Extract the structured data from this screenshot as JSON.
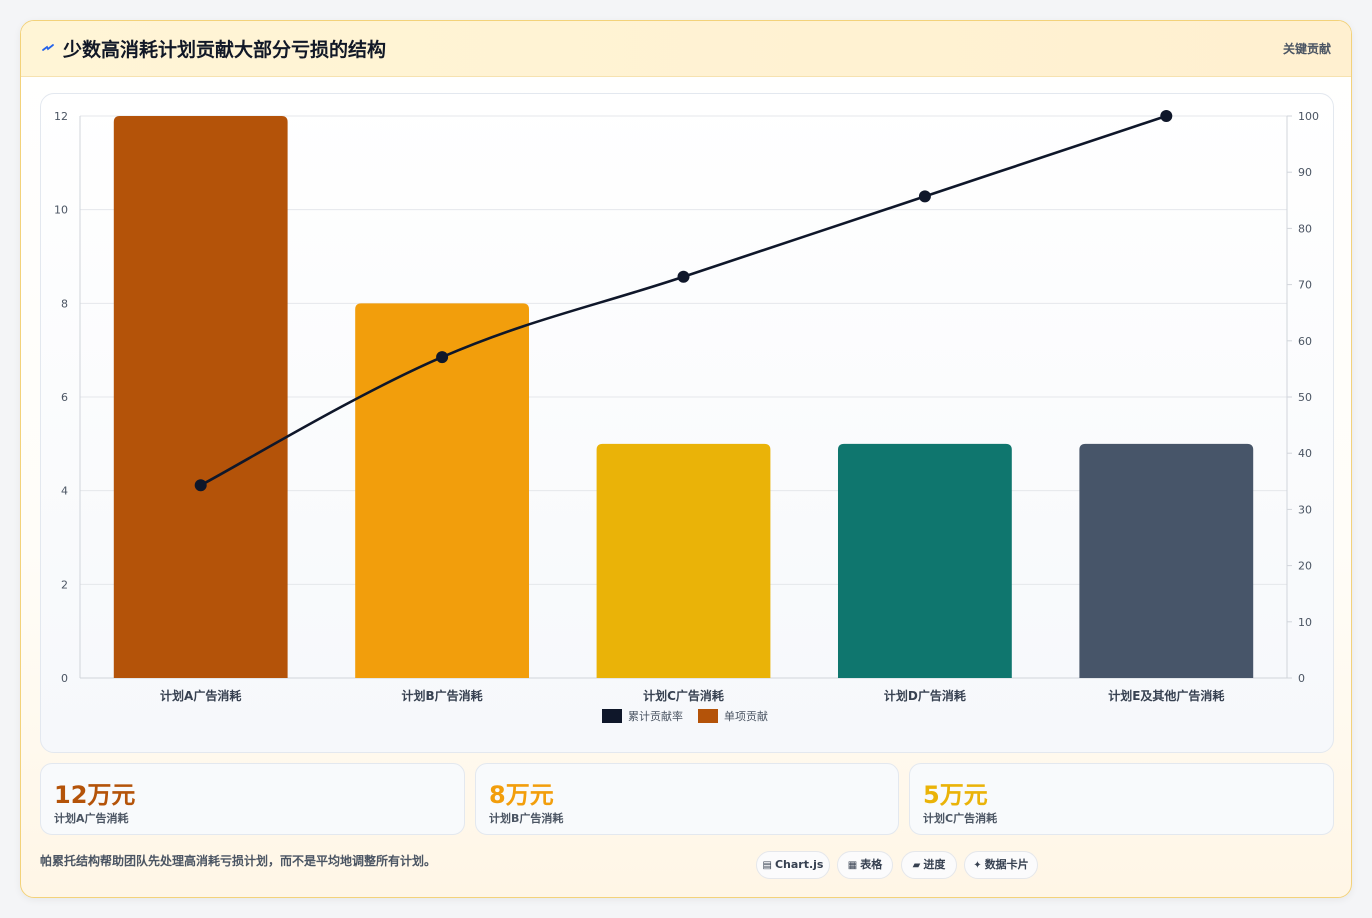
{
  "header": {
    "icon": "lightning-bolt-icon",
    "title": "少数高消耗计划贡献大部分亏损的结构",
    "tag": "关键贡献"
  },
  "chart_data": {
    "type": "bar",
    "categories": [
      "计划A广告消耗",
      "计划B广告消耗",
      "计划C广告消耗",
      "计划D广告消耗",
      "计划E及其他广告消耗"
    ],
    "series": [
      {
        "name": "单项贡献",
        "type": "bar",
        "axis": "left",
        "values": [
          12,
          8,
          5,
          5,
          5
        ],
        "colors": [
          "#b45309",
          "#f29e0c",
          "#eab308",
          "#0f766e",
          "#475569"
        ]
      },
      {
        "name": "累计贡献率",
        "type": "line",
        "axis": "right",
        "values": [
          34.3,
          57.1,
          71.4,
          85.7,
          100
        ],
        "color": "#0f172a"
      }
    ],
    "ylim": [
      0,
      12
    ],
    "yticks": [
      0,
      2,
      4,
      6,
      8,
      10,
      12
    ],
    "y2lim": [
      0,
      100
    ],
    "y2ticks": [
      0,
      10,
      20,
      30,
      40,
      50,
      60,
      70,
      80,
      90,
      100
    ],
    "legend": [
      "累计贡献率",
      "单项贡献"
    ],
    "legend_position": "bottom",
    "grid": true
  },
  "stats": [
    {
      "value": "12万元",
      "label": "计划A广告消耗",
      "color": "#b45309"
    },
    {
      "value": "8万元",
      "label": "计划B广告消耗",
      "color": "#f29e0c"
    },
    {
      "value": "5万元",
      "label": "计划C广告消耗",
      "color": "#eab308"
    }
  ],
  "footnote": "帕累托结构帮助团队先处理高消耗亏损计划，而不是平均地调整所有计划。",
  "chips": [
    {
      "icon": "chart-icon",
      "glyph": "▤",
      "label": "Chart.js"
    },
    {
      "icon": "table-icon",
      "glyph": "▦",
      "label": "表格"
    },
    {
      "icon": "progress-icon",
      "glyph": "▰",
      "label": "进度"
    },
    {
      "icon": "sparkle-icon",
      "glyph": "✦",
      "label": "数据卡片"
    }
  ]
}
